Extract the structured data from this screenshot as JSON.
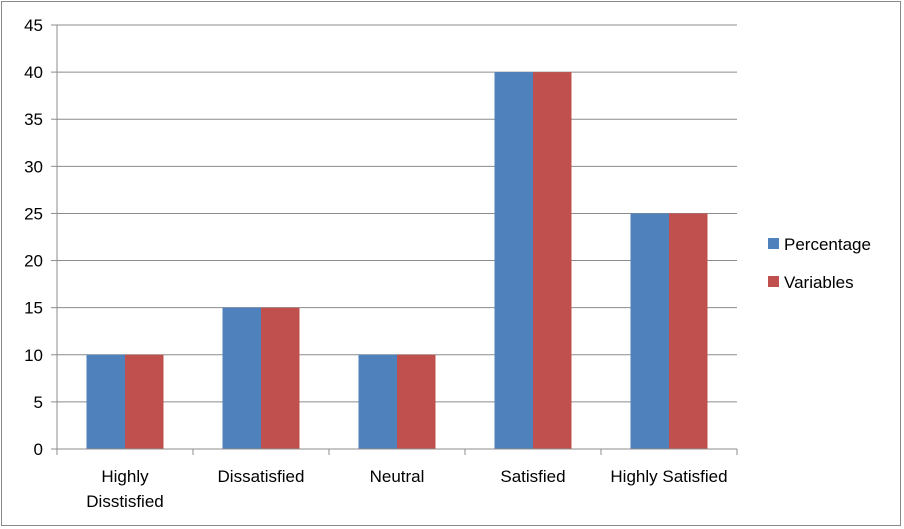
{
  "chart_data": {
    "type": "bar",
    "title": "",
    "xlabel": "",
    "ylabel": "",
    "categories": [
      [
        "Highly",
        "Disstisfied"
      ],
      [
        "Dissatisfied"
      ],
      [
        "Neutral"
      ],
      [
        "Satisfied"
      ],
      [
        "Highly Satisfied"
      ]
    ],
    "series": [
      {
        "name": "Percentage",
        "color": "#4F81BD",
        "values": [
          10,
          15,
          10,
          40,
          25
        ]
      },
      {
        "name": "Variables",
        "color": "#C0504D",
        "values": [
          10,
          15,
          10,
          40,
          25
        ]
      }
    ],
    "ylim": [
      0,
      45
    ],
    "yticks": [
      0,
      5,
      10,
      15,
      20,
      25,
      30,
      35,
      40,
      45
    ],
    "grid": true,
    "legend_position": "right"
  }
}
